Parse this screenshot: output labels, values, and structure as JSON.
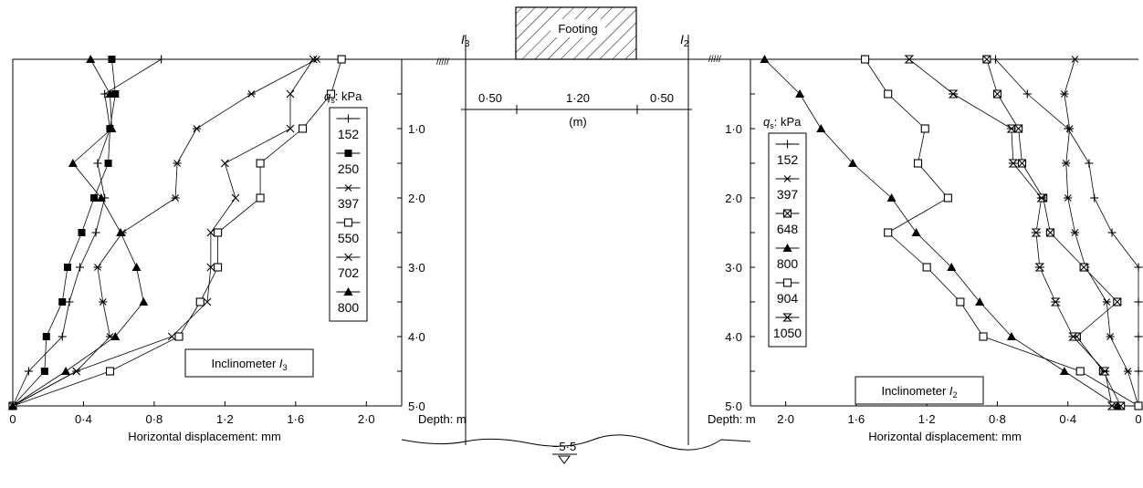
{
  "footing": {
    "label": "Footing",
    "i3_label": "I",
    "i3_sub": "3",
    "i2_label": "I",
    "i2_sub": "2",
    "dim_left": "0·50",
    "dim_mid": "1·20",
    "dim_right": "0·50",
    "dim_unit": "(m)",
    "water_level": "−5·5"
  },
  "chart_data": [
    {
      "type": "line",
      "title": "Inclinometer I3",
      "title_main": "Inclinometer ",
      "title_italic": "I",
      "title_sub": "3",
      "xlabel": "Horizontal displacement: mm",
      "ylabel": "Depth: m",
      "xlim": [
        0,
        2.2
      ],
      "ylim": [
        5.0,
        0
      ],
      "x_ticks": [
        0,
        0.4,
        0.8,
        1.2,
        1.6,
        2.0
      ],
      "x_tick_labels": [
        "0",
        "0·4",
        "0·8",
        "1·2",
        "1·6",
        "2·0"
      ],
      "y_ticks": [
        1.0,
        2.0,
        3.0,
        4.0,
        5.0
      ],
      "y_tick_labels": [
        "1·0",
        "2·0",
        "3·0",
        "4·0",
        "5·0"
      ],
      "legend_title_q": "q",
      "legend_title_sub": "s",
      "legend_title_rest": ": kPa",
      "series": [
        {
          "name": "152",
          "marker": "plus",
          "points": [
            [
              0.84,
              0
            ],
            [
              0.52,
              0.5
            ],
            [
              0.55,
              1.0
            ],
            [
              0.48,
              1.5
            ],
            [
              0.52,
              2.0
            ],
            [
              0.47,
              2.5
            ],
            [
              0.38,
              3.0
            ],
            [
              0.32,
              3.5
            ],
            [
              0.28,
              4.0
            ],
            [
              0.09,
              4.5
            ],
            [
              0,
              5.0
            ]
          ]
        },
        {
          "name": "250",
          "marker": "square",
          "points": [
            [
              0.56,
              0
            ],
            [
              0.58,
              0.5
            ],
            [
              0.55,
              1.0
            ],
            [
              0.54,
              1.5
            ],
            [
              0.46,
              2.0
            ],
            [
              0.39,
              2.5
            ],
            [
              0.31,
              3.0
            ],
            [
              0.28,
              3.5
            ],
            [
              0.19,
              4.0
            ],
            [
              0.18,
              4.5
            ],
            [
              0,
              5.0
            ]
          ]
        },
        {
          "name": "397",
          "marker": "asterisk",
          "points": [
            [
              1.72,
              0
            ],
            [
              1.35,
              0.5
            ],
            [
              1.04,
              1.0
            ],
            [
              0.93,
              1.5
            ],
            [
              0.92,
              2.0
            ],
            [
              0.62,
              2.5
            ],
            [
              0.48,
              3.0
            ],
            [
              0.51,
              3.5
            ],
            [
              0.55,
              4.0
            ],
            [
              0.36,
              4.5
            ],
            [
              0,
              5.0
            ]
          ]
        },
        {
          "name": "550",
          "marker": "square-open",
          "points": [
            [
              1.86,
              0
            ],
            [
              1.8,
              0.5
            ],
            [
              1.64,
              1.0
            ],
            [
              1.4,
              1.5
            ],
            [
              1.4,
              2.0
            ],
            [
              1.16,
              2.5
            ],
            [
              1.16,
              3.0
            ],
            [
              1.06,
              3.5
            ],
            [
              0.94,
              4.0
            ],
            [
              0.55,
              4.5
            ],
            [
              0,
              5.0
            ]
          ]
        },
        {
          "name": "702",
          "marker": "x",
          "points": [
            [
              1.7,
              0
            ],
            [
              1.57,
              0.5
            ],
            [
              1.57,
              1.0
            ],
            [
              1.2,
              1.5
            ],
            [
              1.26,
              2.0
            ],
            [
              1.12,
              2.5
            ],
            [
              1.12,
              3.0
            ],
            [
              1.1,
              3.5
            ],
            [
              0.9,
              4.0
            ],
            [
              0.36,
              4.5
            ],
            [
              0,
              5.0
            ]
          ]
        },
        {
          "name": "800",
          "marker": "triangle",
          "points": [
            [
              0.44,
              0
            ],
            [
              0.55,
              0.5
            ],
            [
              0.56,
              1.0
            ],
            [
              0.34,
              1.5
            ],
            [
              0.5,
              2.0
            ],
            [
              0.61,
              2.5
            ],
            [
              0.7,
              3.0
            ],
            [
              0.74,
              3.5
            ],
            [
              0.58,
              4.0
            ],
            [
              0.3,
              4.5
            ],
            [
              0,
              5.0
            ]
          ]
        }
      ]
    },
    {
      "type": "line",
      "title": "Inclinometer I2",
      "title_main": "Inclinometer ",
      "title_italic": "I",
      "title_sub": "2",
      "xlabel": "Horizontal displacement: mm",
      "ylabel": "Depth: m",
      "xlim": [
        2.2,
        0
      ],
      "ylim": [
        5.0,
        0
      ],
      "x_ticks": [
        2.0,
        1.6,
        1.2,
        0.8,
        0.4,
        0
      ],
      "x_tick_labels": [
        "2·0",
        "1·6",
        "1·2",
        "0·8",
        "0·4",
        "0"
      ],
      "y_ticks": [
        1.0,
        2.0,
        3.0,
        4.0,
        5.0
      ],
      "y_tick_labels": [
        "1·0",
        "2·0",
        "3·0",
        "4·0",
        "5·0"
      ],
      "legend_title_q": "q",
      "legend_title_sub": "s",
      "legend_title_rest": ": kPa",
      "series": [
        {
          "name": "152",
          "marker": "plus",
          "points": [
            [
              0.81,
              0
            ],
            [
              0.63,
              0.5
            ],
            [
              0.4,
              1.0
            ],
            [
              0.28,
              1.5
            ],
            [
              0.25,
              2.0
            ],
            [
              0.15,
              2.5
            ],
            [
              0,
              3.0
            ],
            [
              0,
              3.5
            ],
            [
              0,
              4.0
            ],
            [
              0,
              4.5
            ],
            [
              0,
              5.0
            ]
          ]
        },
        {
          "name": "397",
          "marker": "asterisk",
          "points": [
            [
              0.36,
              0
            ],
            [
              0.42,
              0.5
            ],
            [
              0.39,
              1.0
            ],
            [
              0.41,
              1.5
            ],
            [
              0.4,
              2.0
            ],
            [
              0.36,
              2.5
            ],
            [
              0.3,
              3.0
            ],
            [
              0.18,
              3.5
            ],
            [
              0.16,
              4.0
            ],
            [
              0.06,
              4.5
            ],
            [
              0,
              5.0
            ]
          ]
        },
        {
          "name": "648",
          "marker": "square-x",
          "points": [
            [
              0.86,
              0
            ],
            [
              0.8,
              0.5
            ],
            [
              0.68,
              1.0
            ],
            [
              0.66,
              1.5
            ],
            [
              0.54,
              2.0
            ],
            [
              0.5,
              2.5
            ],
            [
              0.31,
              3.0
            ],
            [
              0.12,
              3.5
            ],
            [
              0.35,
              4.0
            ],
            [
              0.2,
              4.5
            ],
            [
              0.1,
              5.0
            ]
          ]
        },
        {
          "name": "800",
          "marker": "triangle",
          "points": [
            [
              2.12,
              0
            ],
            [
              1.92,
              0.5
            ],
            [
              1.8,
              1.0
            ],
            [
              1.62,
              1.5
            ],
            [
              1.4,
              2.0
            ],
            [
              1.26,
              2.5
            ],
            [
              1.06,
              3.0
            ],
            [
              0.9,
              3.5
            ],
            [
              0.72,
              4.0
            ],
            [
              0.42,
              4.5
            ],
            [
              0.12,
              5.0
            ]
          ]
        },
        {
          "name": "904",
          "marker": "square-open",
          "points": [
            [
              1.55,
              0
            ],
            [
              1.42,
              0.5
            ],
            [
              1.21,
              1.0
            ],
            [
              1.25,
              1.5
            ],
            [
              1.08,
              2.0
            ],
            [
              1.42,
              2.5
            ],
            [
              1.2,
              3.0
            ],
            [
              1.01,
              3.5
            ],
            [
              0.88,
              4.0
            ],
            [
              0.33,
              4.5
            ],
            [
              0,
              5.0
            ]
          ]
        },
        {
          "name": "1050",
          "marker": "hourglass",
          "points": [
            [
              1.3,
              0
            ],
            [
              1.05,
              0.5
            ],
            [
              0.72,
              1.0
            ],
            [
              0.71,
              1.5
            ],
            [
              0.55,
              2.0
            ],
            [
              0.58,
              2.5
            ],
            [
              0.56,
              3.0
            ],
            [
              0.47,
              3.5
            ],
            [
              0.37,
              4.0
            ],
            [
              0.19,
              4.5
            ],
            [
              0.15,
              5.0
            ]
          ]
        }
      ]
    }
  ]
}
